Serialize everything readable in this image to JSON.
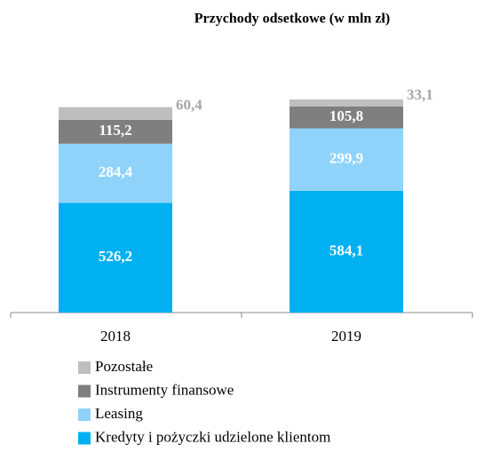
{
  "chart_data": {
    "type": "stacked_bar",
    "title": "Przychody odsetkowe (w mln zł)",
    "categories": [
      "2018",
      "2019"
    ],
    "series": [
      {
        "name": "Kredyty i pożyczki udzielone klientom",
        "color": "#00b0f0",
        "values": [
          526.2,
          584.1
        ],
        "value_labels": [
          "526,2",
          "584,1"
        ]
      },
      {
        "name": "Leasing",
        "color": "#8fd3fb",
        "values": [
          284.4,
          299.9
        ],
        "value_labels": [
          "284,4",
          "299,9"
        ]
      },
      {
        "name": "Instrumenty finansowe",
        "color": "#7f7f7f",
        "values": [
          115.2,
          105.8
        ],
        "value_labels": [
          "115,2",
          "105,8"
        ]
      },
      {
        "name": "Pozostałe",
        "color": "#bfbfbf",
        "values": [
          60.4,
          33.1
        ],
        "value_labels": [
          "60,4",
          "33,1"
        ]
      }
    ]
  }
}
